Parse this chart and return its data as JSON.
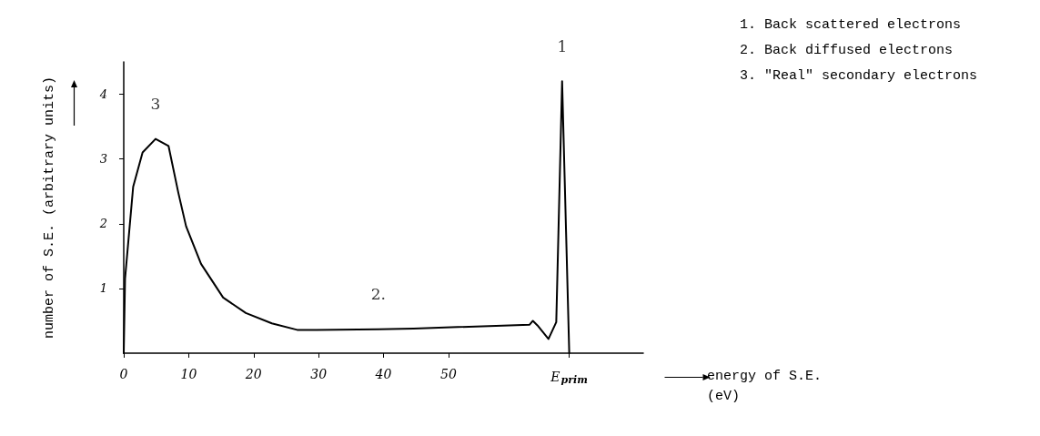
{
  "chart_data": {
    "type": "line",
    "xlabel": "energy of S.E. (eV)",
    "ylabel": "number of S.E. (arbitrary units)",
    "x": [
      0,
      0.2,
      1.45,
      2.9,
      4.9,
      6.9,
      8.4,
      9.6,
      11.9,
      15.3,
      18.8,
      22.8,
      26.7,
      29.7,
      39.2,
      44.6,
      62.5,
      63,
      63.7,
      65.4,
      66.6,
      67.5,
      68.6
    ],
    "series": [
      {
        "color": "#000000",
        "values": [
          0,
          1.15,
          2.57,
          3.1,
          3.31,
          3.2,
          2.48,
          1.96,
          1.38,
          0.86,
          0.62,
          0.46,
          0.36,
          0.36,
          0.37,
          0.38,
          0.44,
          0.5,
          0.43,
          0.22,
          0.48,
          4.2,
          0
        ]
      }
    ],
    "xlim": [
      0,
      80
    ],
    "ylim": [
      0,
      4.5
    ],
    "xticks": [
      0,
      10,
      20,
      30,
      40,
      50,
      {
        "value": 68.6,
        "label": "E$_{prim}$"
      }
    ],
    "yticks": [
      1,
      2,
      3,
      4
    ],
    "annotations": [
      {
        "text": "1",
        "x": 67.5,
        "y": 4.2
      },
      {
        "text": "2.",
        "x": 39.2,
        "y": 0.37
      },
      {
        "text": "3",
        "x": 4.9,
        "y": 3.31
      },
      "1. Back scattered electrons",
      "2. Back diffused electrons",
      "3. \"Real\" secondary electrons"
    ],
    "grid": false,
    "marker": "none",
    "line_style": "solid"
  }
}
